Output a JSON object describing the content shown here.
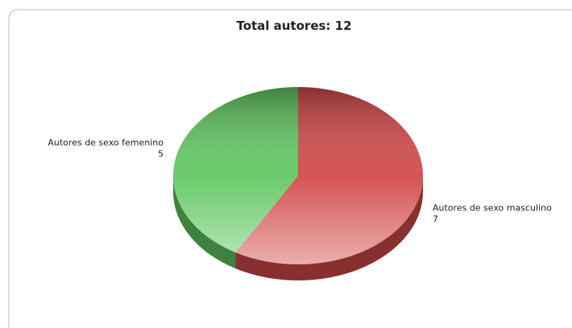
{
  "chart_data": {
    "type": "pie",
    "title": "Total autores: 12",
    "categories": [
      "Autores de sexo masculino",
      "Autores de sexo femenino"
    ],
    "values": [
      7,
      5
    ],
    "colors": [
      "#d24a4a",
      "#62c862"
    ]
  }
}
